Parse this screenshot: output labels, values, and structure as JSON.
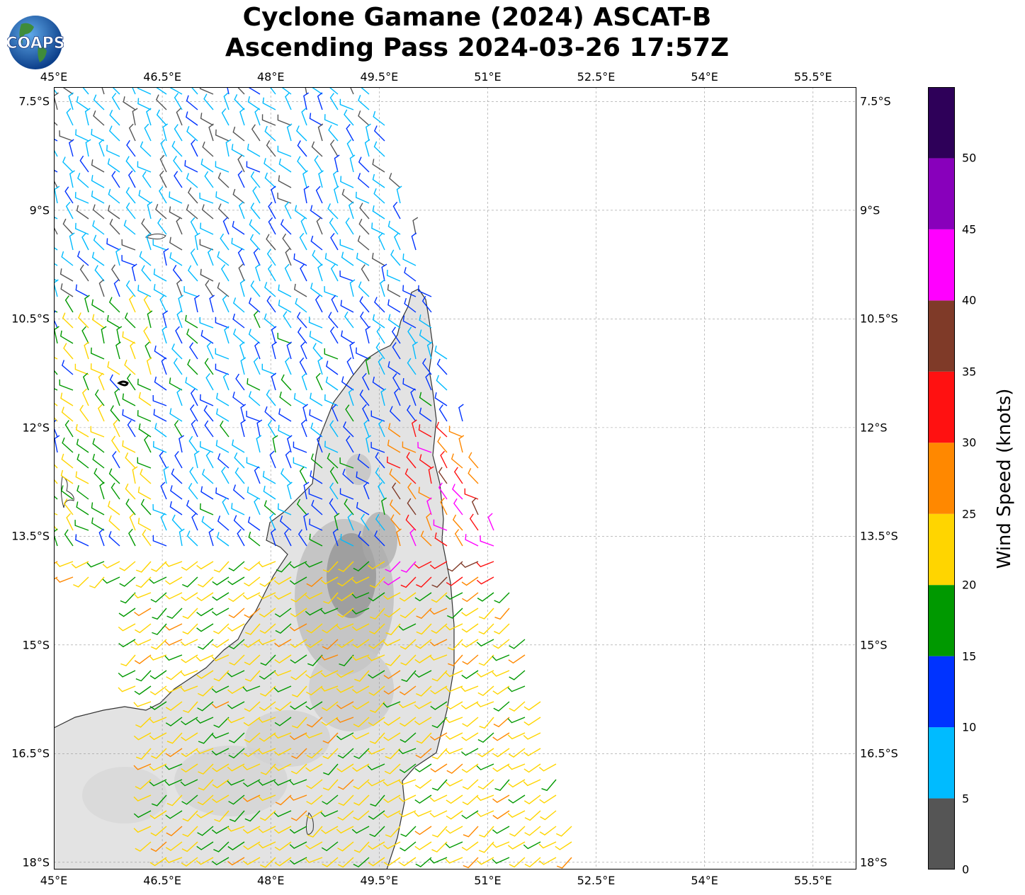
{
  "title": {
    "line1": "Cyclone Gamane (2024) ASCAT-B",
    "line2": "Ascending Pass 2024-03-26 17:57Z"
  },
  "logo_text": "COAPS",
  "map": {
    "lon_labels": [
      "45°E",
      "46.5°E",
      "48°E",
      "49.5°E",
      "51°E",
      "52.5°E",
      "54°E",
      "55.5°E"
    ],
    "lat_labels": [
      "7.5°S",
      "9°S",
      "10.5°S",
      "12°S",
      "13.5°S",
      "15°S",
      "16.5°S",
      "18°S"
    ],
    "lon_range": [
      45.0,
      56.1
    ],
    "lat_range": [
      -7.3,
      -18.1
    ],
    "gridlines": "dashed",
    "background": "topography shaded gray over land"
  },
  "colorbar": {
    "label": "Wind Speed (knots)",
    "ticks": [
      "0",
      "5",
      "10",
      "15",
      "20",
      "25",
      "30",
      "35",
      "40",
      "45",
      "50"
    ],
    "bins": [
      {
        "from": 0,
        "to": 5,
        "color": "#555555"
      },
      {
        "from": 5,
        "to": 10,
        "color": "#00bbff"
      },
      {
        "from": 10,
        "to": 15,
        "color": "#0033ff"
      },
      {
        "from": 15,
        "to": 20,
        "color": "#009900"
      },
      {
        "from": 20,
        "to": 25,
        "color": "#ffd500"
      },
      {
        "from": 25,
        "to": 30,
        "color": "#ff8800"
      },
      {
        "from": 30,
        "to": 35,
        "color": "#ff1111"
      },
      {
        "from": 35,
        "to": 40,
        "color": "#7f3a28"
      },
      {
        "from": 40,
        "to": 45,
        "color": "#ff00ff"
      },
      {
        "from": 45,
        "to": 50,
        "color": "#8800bb"
      },
      {
        "from": 50,
        "to": 55,
        "color": "#2e0059"
      }
    ]
  }
}
